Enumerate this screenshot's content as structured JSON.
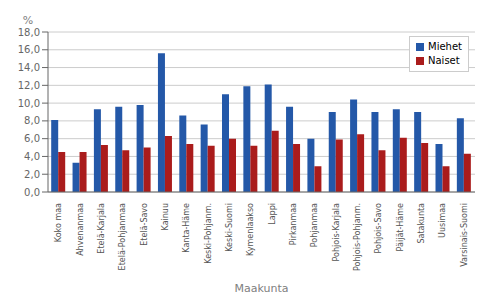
{
  "chart_data": {
    "type": "bar",
    "xlabel": "Maakunta",
    "ylabel": "%",
    "categories": [
      "Koko maa",
      "Ahvenanmaa",
      "Etelä-Karjala",
      "Etelä-Pohjanmaa",
      "Etelä-Savo",
      "Kainuu",
      "Kanta-Häme",
      "Keski-Pohjanm.",
      "Keski-Suomi",
      "Kymenlaakso",
      "Lappi",
      "Pirkanmaa",
      "Pohjanmaa",
      "Pohjois-Karjala",
      "Pohjois-Pohjanm.",
      "Pohjois-Savo",
      "Päijät-Häme",
      "Satakunta",
      "Uusimaa",
      "Varsinais-Suomi"
    ],
    "series": [
      {
        "name": "Miehet",
        "color": "#2458A8",
        "values": [
          8.1,
          3.3,
          9.3,
          9.6,
          9.8,
          15.6,
          8.6,
          7.6,
          11.0,
          11.9,
          12.1,
          9.6,
          6.0,
          9.0,
          10.4,
          9.0,
          9.3,
          9.0,
          5.4,
          8.3
        ]
      },
      {
        "name": "Naiset",
        "color": "#AA1C1C",
        "values": [
          4.5,
          4.5,
          5.3,
          4.7,
          5.0,
          6.3,
          5.4,
          5.2,
          6.0,
          5.2,
          6.9,
          5.4,
          2.9,
          5.9,
          6.5,
          4.7,
          6.1,
          5.5,
          2.9,
          4.3
        ]
      }
    ],
    "ylim": [
      0,
      18.0
    ],
    "yticks": [
      {
        "value": 0.0,
        "label": "0,0"
      },
      {
        "value": 2.0,
        "label": "2,0"
      },
      {
        "value": 4.0,
        "label": "4,0"
      },
      {
        "value": 6.0,
        "label": "6,0"
      },
      {
        "value": 8.0,
        "label": "8,0"
      },
      {
        "value": 10.0,
        "label": "10,0"
      },
      {
        "value": 12.0,
        "label": "12,0"
      },
      {
        "value": 14.0,
        "label": "14,0"
      },
      {
        "value": 16.0,
        "label": "16,0"
      },
      {
        "value": 18.0,
        "label": "18,0"
      }
    ],
    "grid": true,
    "legend": "upper right"
  }
}
